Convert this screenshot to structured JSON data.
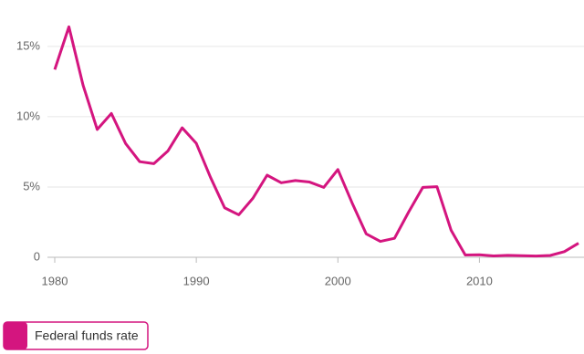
{
  "chart_data": {
    "type": "line",
    "x": [
      1980,
      1981,
      1982,
      1983,
      1984,
      1985,
      1986,
      1987,
      1988,
      1989,
      1990,
      1991,
      1992,
      1993,
      1994,
      1995,
      1996,
      1997,
      1998,
      1999,
      2000,
      2001,
      2002,
      2003,
      2004,
      2005,
      2006,
      2007,
      2008,
      2009,
      2010,
      2011,
      2012,
      2013,
      2014,
      2015,
      2016,
      2017
    ],
    "series": [
      {
        "name": "Federal funds rate",
        "color": "#d4157f",
        "values": [
          13.35,
          16.39,
          12.24,
          9.09,
          10.23,
          8.1,
          6.8,
          6.66,
          7.57,
          9.21,
          8.1,
          5.69,
          3.52,
          3.02,
          4.2,
          5.84,
          5.3,
          5.46,
          5.35,
          4.97,
          6.24,
          3.88,
          1.67,
          1.13,
          1.35,
          3.22,
          4.97,
          5.02,
          1.92,
          0.16,
          0.18,
          0.1,
          0.14,
          0.11,
          0.09,
          0.13,
          0.4,
          1.0
        ]
      }
    ],
    "xlim": [
      1980,
      2017
    ],
    "xticks": [
      1980,
      1990,
      2000,
      2010
    ],
    "ylim": [
      0,
      17
    ],
    "yticks": [
      {
        "value": 0,
        "label": "0"
      },
      {
        "value": 5,
        "label": "5%"
      },
      {
        "value": 10,
        "label": "10%"
      },
      {
        "value": 15,
        "label": "15%"
      }
    ],
    "grid": true
  }
}
